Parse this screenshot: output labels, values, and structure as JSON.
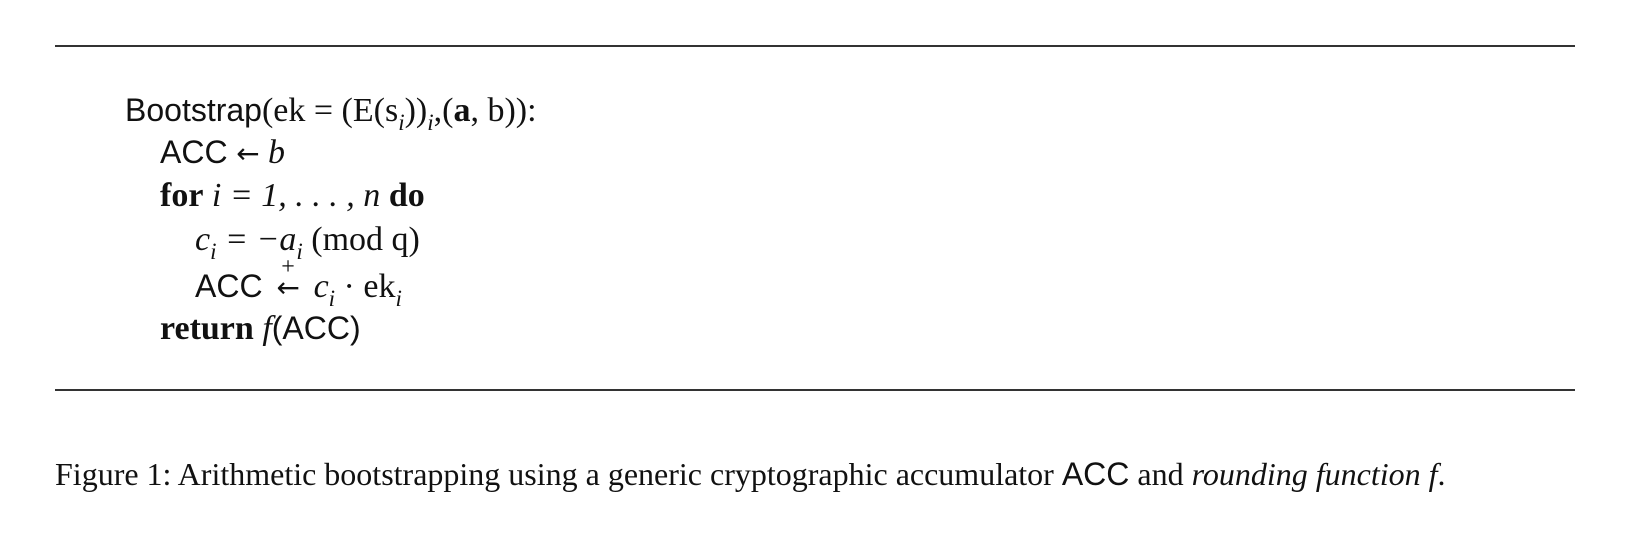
{
  "algorithm": {
    "header": {
      "name": "Bootstrap",
      "params": "(ek = (E(s",
      "sub_i": "i",
      "params_2": "))",
      "sub_i2": "i",
      "params_3": ",(",
      "bold_a": "a",
      "params_4": ", b)):"
    },
    "line1": {
      "acc": "ACC",
      "arrow": "←",
      "var": "b"
    },
    "line2": {
      "for_kw": "for",
      "range": "i = 1, . . . , n",
      "do_kw": "do"
    },
    "line3": {
      "lhs": "c",
      "sub": "i",
      "mid": "= −a",
      "sub2": "i",
      "rest": " (mod q)"
    },
    "line4": {
      "acc": "ACC",
      "plus": "+",
      "arrow": "←",
      "c": "c",
      "sub": "i",
      "dot": " · ek",
      "sub2": "i"
    },
    "line5": {
      "return_kw": "return",
      "f": "f",
      "arg": "(ACC)"
    }
  },
  "caption": {
    "text_1": "Figure 1: Arithmetic bootstrapping using a generic cryptographic accumulator ",
    "acc": "ACC",
    "text_2": " and ",
    "italic": "rounding function",
    "text_3": " ",
    "f": "f",
    "end": "."
  }
}
